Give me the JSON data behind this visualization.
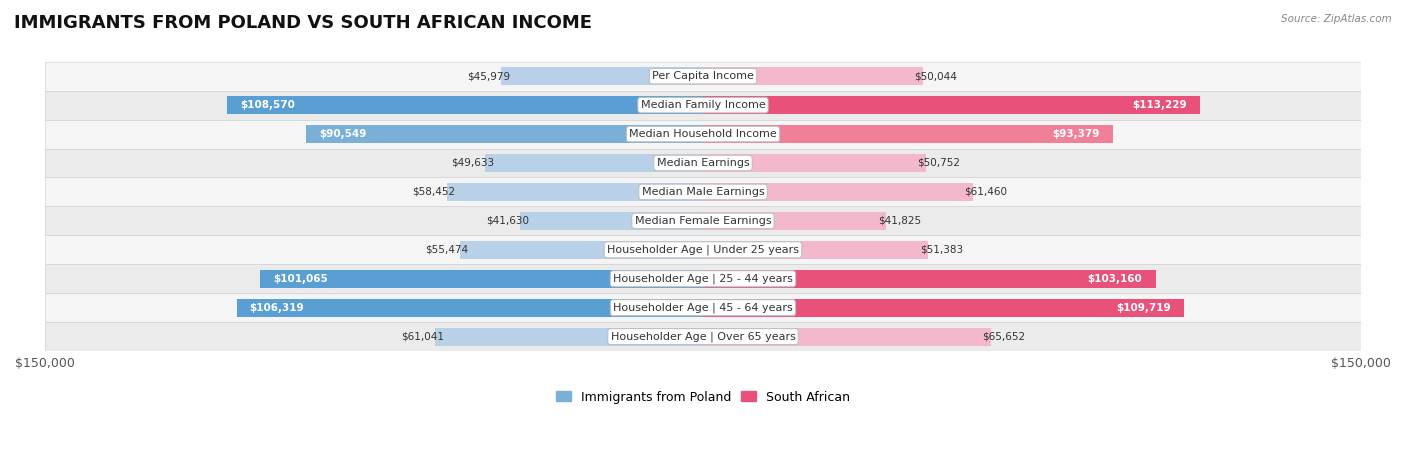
{
  "title": "IMMIGRANTS FROM POLAND VS SOUTH AFRICAN INCOME",
  "source": "Source: ZipAtlas.com",
  "categories": [
    "Per Capita Income",
    "Median Family Income",
    "Median Household Income",
    "Median Earnings",
    "Median Male Earnings",
    "Median Female Earnings",
    "Householder Age | Under 25 years",
    "Householder Age | 25 - 44 years",
    "Householder Age | 45 - 64 years",
    "Householder Age | Over 65 years"
  ],
  "poland_values": [
    45979,
    108570,
    90549,
    49633,
    58452,
    41630,
    55474,
    101065,
    106319,
    61041
  ],
  "southafrican_values": [
    50044,
    113229,
    93379,
    50752,
    61460,
    41825,
    51383,
    103160,
    109719,
    65652
  ],
  "poland_colors": [
    "#b8d0e8",
    "#5a9fd4",
    "#7ab0d8",
    "#b8d0e8",
    "#b8d0e8",
    "#b8d0e8",
    "#b8d0e8",
    "#5a9fd4",
    "#5a9fd4",
    "#b8d0e8"
  ],
  "southafrican_colors": [
    "#f4b8cc",
    "#e8527a",
    "#f08098",
    "#f4b8cc",
    "#f4b8cc",
    "#f4b8cc",
    "#f4b8cc",
    "#e8527a",
    "#e8527a",
    "#f4b8cc"
  ],
  "poland_legend_color": "#7ab0d8",
  "southafrican_legend_color": "#e8527a",
  "poland_label": "Immigrants from Poland",
  "southafrican_label": "South African",
  "max_val": 150000,
  "axis_label_left": "$150,000",
  "axis_label_right": "$150,000",
  "bar_height": 0.62,
  "title_fontsize": 13,
  "label_fontsize": 8,
  "value_fontsize": 7.5,
  "white_text_threshold": 70000,
  "row_colors": [
    "#f5f5f5",
    "#ebebeb",
    "#f5f5f5",
    "#ebebeb",
    "#f5f5f5",
    "#ebebeb",
    "#f5f5f5",
    "#ebebeb",
    "#f5f5f5",
    "#ebebeb"
  ]
}
